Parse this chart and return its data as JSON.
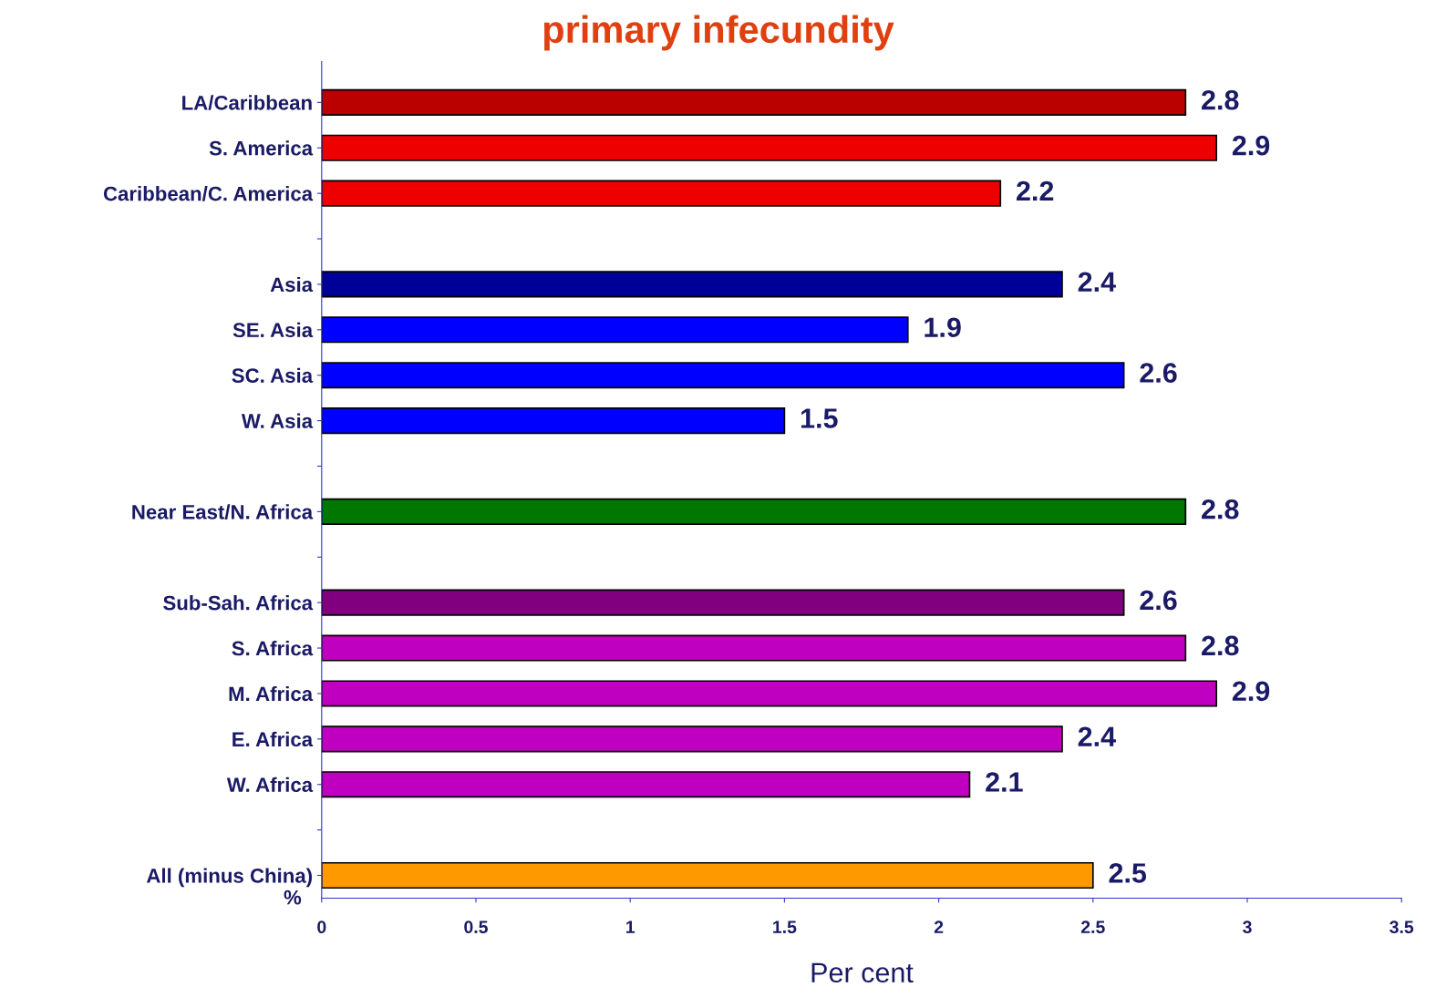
{
  "chart_data": {
    "type": "bar",
    "orientation": "horizontal",
    "title": "primary infecundity",
    "xlabel": "Per cent",
    "categories": [
      "LA/Caribbean",
      "S. America",
      "Caribbean/C. America",
      null,
      "Asia",
      "SE. Asia",
      "SC. Asia",
      "W. Asia",
      null,
      "Near East/N. Africa",
      null,
      "Sub-Sah. Africa",
      "S. Africa",
      "M. Africa",
      "E. Africa",
      "W. Africa",
      null,
      "All (minus China)"
    ],
    "values": [
      2.8,
      2.9,
      2.2,
      null,
      2.4,
      1.9,
      2.6,
      1.5,
      null,
      2.8,
      null,
      2.6,
      2.8,
      2.9,
      2.4,
      2.1,
      null,
      2.5
    ],
    "colors": [
      "#bb0000",
      "#ee0000",
      "#ee0000",
      null,
      "#000099",
      "#0000ff",
      "#0000ff",
      "#0000ff",
      null,
      "#007700",
      null,
      "#800080",
      "#c000c0",
      "#c000c0",
      "#c000c0",
      "#c000c0",
      null,
      "#ff9900"
    ],
    "xlim": [
      0,
      3.5
    ],
    "xticks": [
      0,
      0.5,
      1,
      1.5,
      2,
      2.5,
      3,
      3.5
    ],
    "data_labels": true,
    "grid": false,
    "legend": false,
    "annotations": [
      "%"
    ]
  }
}
